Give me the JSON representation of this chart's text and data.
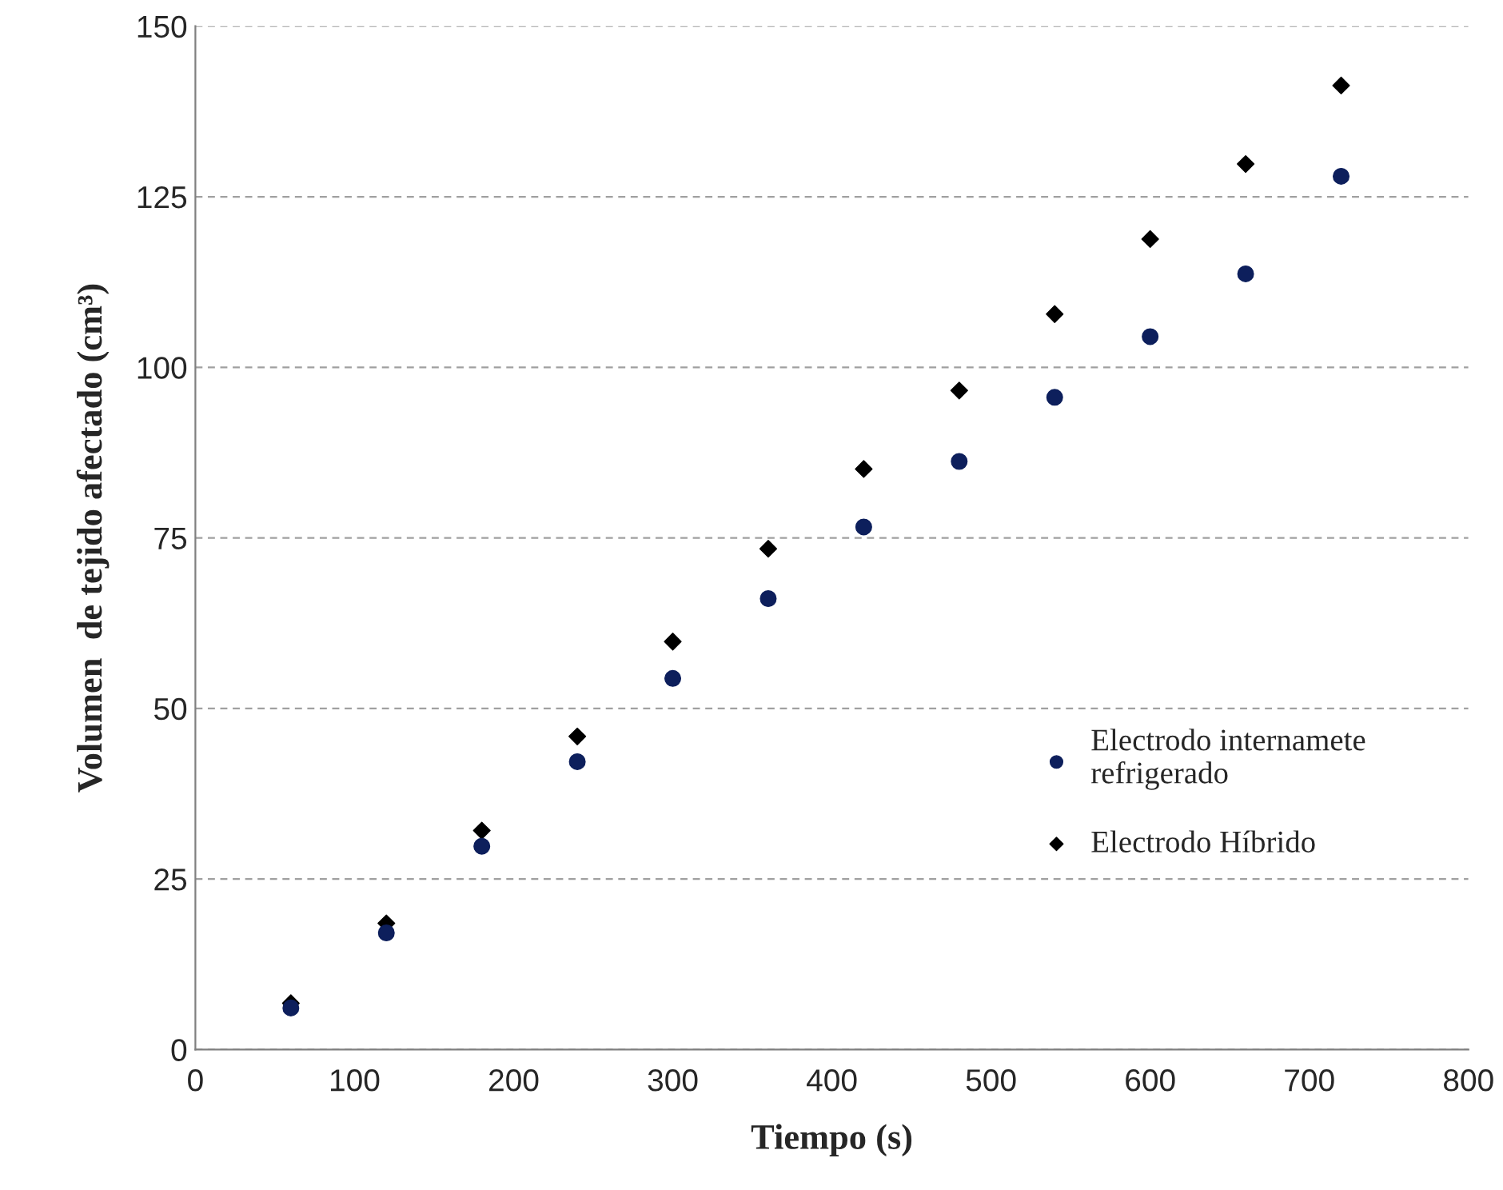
{
  "chart_data": {
    "type": "scatter",
    "xlabel": "Tiempo (s)",
    "ylabel": "Volumen  de tejido afectado (cm³)",
    "x": [
      60,
      120,
      180,
      240,
      300,
      360,
      420,
      480,
      540,
      600,
      660,
      720
    ],
    "series": [
      {
        "name": "Electrodo internamete\nrefrigerado",
        "color": "#0d1f5c",
        "marker": "circle",
        "values": [
          6.1,
          17.1,
          29.8,
          42.2,
          54.4,
          66.1,
          76.6,
          86.2,
          95.6,
          104.5,
          113.7,
          128
        ]
      },
      {
        "name": "Electrodo Híbrido",
        "color": "#000000",
        "marker": "diamond",
        "values": [
          6.8,
          18.5,
          32.1,
          45.9,
          59.8,
          73.4,
          85.1,
          96.6,
          107.8,
          118.8,
          129.8,
          141.3
        ]
      }
    ],
    "xlim": [
      0,
      800
    ],
    "xticks": [
      0,
      100,
      200,
      300,
      400,
      500,
      600,
      700,
      800
    ],
    "ylim": [
      0,
      150
    ],
    "yticks": [
      0,
      25,
      50,
      75,
      100,
      125,
      150
    ],
    "grid": "y",
    "legend": "right"
  }
}
